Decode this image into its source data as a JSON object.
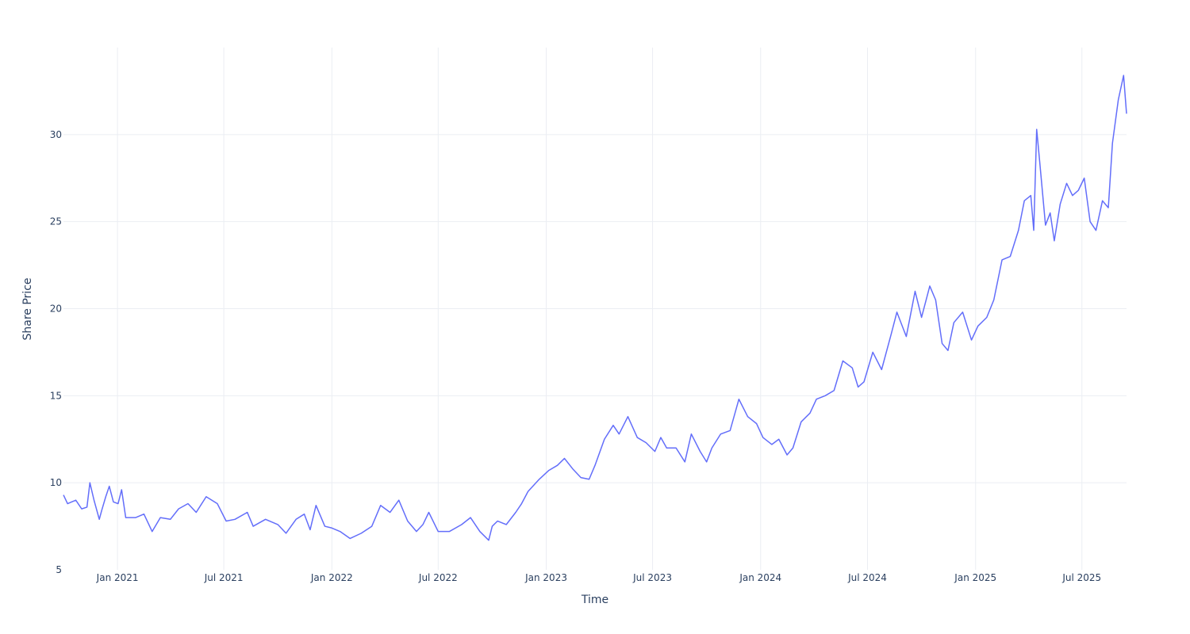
{
  "chart_data": {
    "type": "line",
    "xlabel": "Time",
    "ylabel": "Share Price",
    "x_range": [
      "2020-10-01",
      "2025-09-15"
    ],
    "y_range": [
      5,
      35
    ],
    "x_ticks": [
      {
        "date": "2021-01-01",
        "label": "Jan 2021"
      },
      {
        "date": "2021-07-01",
        "label": "Jul 2021"
      },
      {
        "date": "2022-01-01",
        "label": "Jan 2022"
      },
      {
        "date": "2022-07-01",
        "label": "Jul 2022"
      },
      {
        "date": "2023-01-01",
        "label": "Jan 2023"
      },
      {
        "date": "2023-07-01",
        "label": "Jul 2023"
      },
      {
        "date": "2024-01-01",
        "label": "Jan 2024"
      },
      {
        "date": "2024-07-01",
        "label": "Jul 2024"
      },
      {
        "date": "2025-01-01",
        "label": "Jan 2025"
      },
      {
        "date": "2025-07-01",
        "label": "Jul 2025"
      }
    ],
    "y_ticks": [
      5,
      10,
      15,
      20,
      25,
      30
    ],
    "grid": true,
    "legend": false,
    "line_color": "#636efa",
    "series": [
      {
        "points": [
          [
            "2020-10-01",
            9.3
          ],
          [
            "2020-10-08",
            8.8
          ],
          [
            "2020-10-15",
            8.9
          ],
          [
            "2020-10-22",
            9.0
          ],
          [
            "2020-11-01",
            8.5
          ],
          [
            "2020-11-10",
            8.6
          ],
          [
            "2020-11-15",
            10.0
          ],
          [
            "2020-11-22",
            9.0
          ],
          [
            "2020-12-01",
            7.9
          ],
          [
            "2020-12-05",
            8.4
          ],
          [
            "2020-12-12",
            9.2
          ],
          [
            "2020-12-18",
            9.8
          ],
          [
            "2020-12-25",
            8.9
          ],
          [
            "2021-01-02",
            8.8
          ],
          [
            "2021-01-08",
            9.6
          ],
          [
            "2021-01-15",
            8.0
          ],
          [
            "2021-02-01",
            8.0
          ],
          [
            "2021-02-15",
            8.2
          ],
          [
            "2021-03-01",
            7.2
          ],
          [
            "2021-03-15",
            8.0
          ],
          [
            "2021-04-01",
            7.9
          ],
          [
            "2021-04-15",
            8.5
          ],
          [
            "2021-05-01",
            8.8
          ],
          [
            "2021-05-15",
            8.3
          ],
          [
            "2021-06-01",
            9.2
          ],
          [
            "2021-06-20",
            8.8
          ],
          [
            "2021-07-05",
            7.8
          ],
          [
            "2021-07-20",
            7.9
          ],
          [
            "2021-08-10",
            8.3
          ],
          [
            "2021-08-20",
            7.5
          ],
          [
            "2021-09-10",
            7.9
          ],
          [
            "2021-10-01",
            7.6
          ],
          [
            "2021-10-15",
            7.1
          ],
          [
            "2021-11-01",
            7.9
          ],
          [
            "2021-11-15",
            8.2
          ],
          [
            "2021-11-25",
            7.3
          ],
          [
            "2021-12-05",
            8.7
          ],
          [
            "2021-12-20",
            7.5
          ],
          [
            "2022-01-01",
            7.4
          ],
          [
            "2022-01-15",
            7.2
          ],
          [
            "2022-02-01",
            6.8
          ],
          [
            "2022-02-20",
            7.1
          ],
          [
            "2022-03-10",
            7.5
          ],
          [
            "2022-03-25",
            8.7
          ],
          [
            "2022-04-10",
            8.3
          ],
          [
            "2022-04-25",
            9.0
          ],
          [
            "2022-05-10",
            7.8
          ],
          [
            "2022-05-25",
            7.2
          ],
          [
            "2022-06-05",
            7.6
          ],
          [
            "2022-06-15",
            8.3
          ],
          [
            "2022-07-01",
            7.2
          ],
          [
            "2022-07-20",
            7.2
          ],
          [
            "2022-08-10",
            7.6
          ],
          [
            "2022-08-25",
            8.0
          ],
          [
            "2022-09-10",
            7.2
          ],
          [
            "2022-09-25",
            6.7
          ],
          [
            "2022-10-01",
            7.5
          ],
          [
            "2022-10-10",
            7.8
          ],
          [
            "2022-10-25",
            7.6
          ],
          [
            "2022-11-10",
            8.3
          ],
          [
            "2022-11-20",
            8.8
          ],
          [
            "2022-12-01",
            9.5
          ],
          [
            "2022-12-20",
            10.2
          ],
          [
            "2023-01-05",
            10.7
          ],
          [
            "2023-01-20",
            11.0
          ],
          [
            "2023-02-01",
            11.4
          ],
          [
            "2023-02-15",
            10.8
          ],
          [
            "2023-03-01",
            10.3
          ],
          [
            "2023-03-15",
            10.2
          ],
          [
            "2023-03-25",
            11.0
          ],
          [
            "2023-04-10",
            12.5
          ],
          [
            "2023-04-25",
            13.3
          ],
          [
            "2023-05-05",
            12.8
          ],
          [
            "2023-05-20",
            13.8
          ],
          [
            "2023-06-05",
            12.6
          ],
          [
            "2023-06-20",
            12.3
          ],
          [
            "2023-07-05",
            11.8
          ],
          [
            "2023-07-15",
            12.6
          ],
          [
            "2023-07-25",
            12.0
          ],
          [
            "2023-08-10",
            12.0
          ],
          [
            "2023-08-25",
            11.2
          ],
          [
            "2023-09-05",
            12.8
          ],
          [
            "2023-09-20",
            11.8
          ],
          [
            "2023-10-01",
            11.2
          ],
          [
            "2023-10-10",
            12.0
          ],
          [
            "2023-10-25",
            12.8
          ],
          [
            "2023-11-10",
            13.0
          ],
          [
            "2023-11-25",
            14.8
          ],
          [
            "2023-12-10",
            13.8
          ],
          [
            "2023-12-25",
            13.4
          ],
          [
            "2024-01-05",
            12.6
          ],
          [
            "2024-01-20",
            12.2
          ],
          [
            "2024-02-01",
            12.5
          ],
          [
            "2024-02-15",
            11.6
          ],
          [
            "2024-02-25",
            12.0
          ],
          [
            "2024-03-10",
            13.5
          ],
          [
            "2024-03-25",
            14.0
          ],
          [
            "2024-04-05",
            14.8
          ],
          [
            "2024-04-20",
            15.0
          ],
          [
            "2024-05-05",
            15.3
          ],
          [
            "2024-05-20",
            17.0
          ],
          [
            "2024-06-05",
            16.6
          ],
          [
            "2024-06-15",
            15.5
          ],
          [
            "2024-06-25",
            15.8
          ],
          [
            "2024-07-10",
            17.5
          ],
          [
            "2024-07-25",
            16.5
          ],
          [
            "2024-08-10",
            18.5
          ],
          [
            "2024-08-20",
            19.8
          ],
          [
            "2024-09-05",
            18.4
          ],
          [
            "2024-09-20",
            21.0
          ],
          [
            "2024-10-01",
            19.5
          ],
          [
            "2024-10-15",
            21.3
          ],
          [
            "2024-10-25",
            20.5
          ],
          [
            "2024-11-05",
            18.0
          ],
          [
            "2024-11-15",
            17.6
          ],
          [
            "2024-11-25",
            19.2
          ],
          [
            "2024-12-10",
            19.8
          ],
          [
            "2024-12-25",
            18.2
          ],
          [
            "2025-01-05",
            19.0
          ],
          [
            "2025-01-20",
            19.5
          ],
          [
            "2025-02-01",
            20.5
          ],
          [
            "2025-02-15",
            22.8
          ],
          [
            "2025-03-01",
            23.0
          ],
          [
            "2025-03-15",
            24.5
          ],
          [
            "2025-03-25",
            26.2
          ],
          [
            "2025-04-05",
            26.5
          ],
          [
            "2025-04-10",
            24.5
          ],
          [
            "2025-04-15",
            30.3
          ],
          [
            "2025-04-20",
            28.5
          ],
          [
            "2025-04-30",
            24.8
          ],
          [
            "2025-05-08",
            25.5
          ],
          [
            "2025-05-15",
            23.9
          ],
          [
            "2025-05-25",
            26.0
          ],
          [
            "2025-06-05",
            27.2
          ],
          [
            "2025-06-15",
            26.5
          ],
          [
            "2025-06-25",
            26.8
          ],
          [
            "2025-07-05",
            27.5
          ],
          [
            "2025-07-15",
            25.0
          ],
          [
            "2025-07-25",
            24.5
          ],
          [
            "2025-08-05",
            26.2
          ],
          [
            "2025-08-15",
            25.8
          ],
          [
            "2025-08-22",
            29.5
          ],
          [
            "2025-09-01",
            32.0
          ],
          [
            "2025-09-10",
            33.4
          ],
          [
            "2025-09-15",
            31.2
          ]
        ]
      }
    ]
  }
}
